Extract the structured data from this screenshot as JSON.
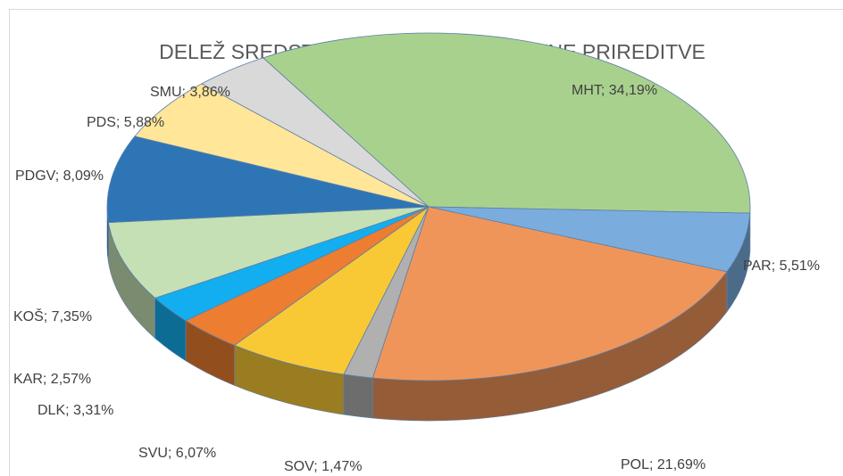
{
  "chart_data": {
    "type": "pie3d",
    "title": "DELEŽ SREDSTEV PO JR 2023 - ŠPORTNE PRIREDITVE",
    "labels": [
      "MHT; 34,19%",
      "PAR; 5,51%",
      "POL; 21,69%",
      "SOV; 1,47%",
      "SVU; 6,07%",
      "DLK; 3,31%",
      "KAR; 2,57%",
      "KOŠ; 7,35%",
      "PDGV; 8,09%",
      "PDS; 5,88%",
      "SMU; 3,86%"
    ],
    "values": [
      34.19,
      5.51,
      21.69,
      1.47,
      6.07,
      3.31,
      2.57,
      7.35,
      8.09,
      5.88,
      3.86
    ],
    "colors": [
      "#a9d18e",
      "#7aaddd",
      "#f0955a",
      "#b0b0b0",
      "#f9c835",
      "#ed7d31",
      "#13aeef",
      "#c5e0b4",
      "#2e75b6",
      "#ffe699",
      "#d9d9d9"
    ]
  }
}
